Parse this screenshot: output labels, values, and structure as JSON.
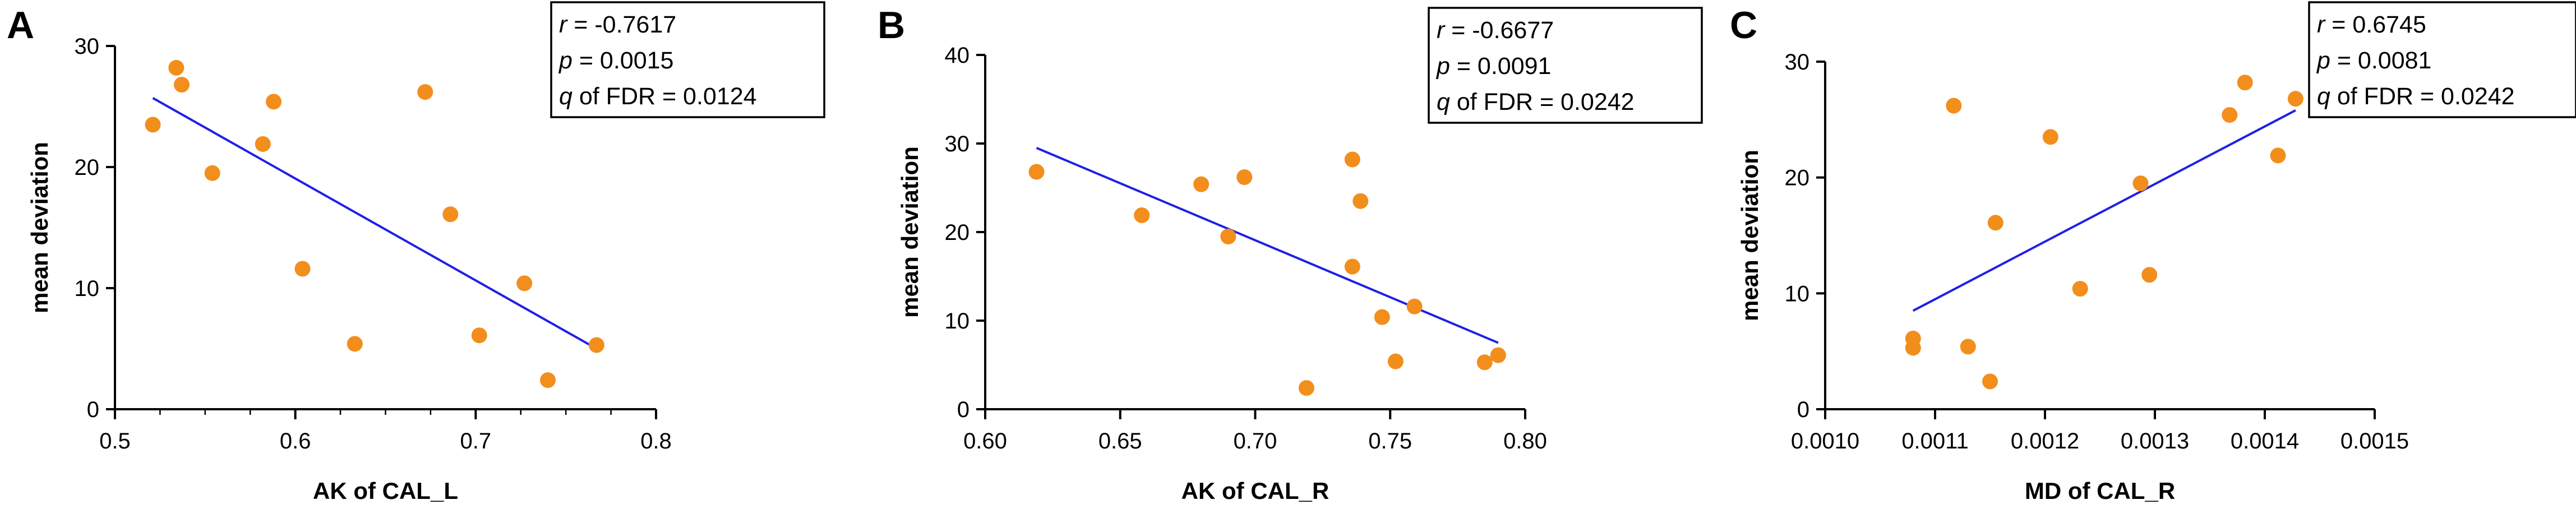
{
  "chart_data": [
    {
      "type": "scatter",
      "panel": "A",
      "xlabel": "AK of CAL_L",
      "ylabel": "mean deviation",
      "xlim": [
        0.5,
        0.8
      ],
      "ylim": [
        0,
        30
      ],
      "xticks": [
        0.5,
        0.6,
        0.7,
        0.8
      ],
      "xtick_labels": [
        "0.5",
        "0.6",
        "0.7",
        "0.8"
      ],
      "yticks": [
        0,
        10,
        20,
        30
      ],
      "ytick_labels": [
        "0",
        "10",
        "20",
        "30"
      ],
      "minor_xticks": [
        0.525,
        0.55,
        0.575,
        0.625,
        0.65,
        0.675,
        0.725,
        0.75,
        0.775
      ],
      "points": [
        [
          0.521,
          23.5
        ],
        [
          0.534,
          28.2
        ],
        [
          0.537,
          26.8
        ],
        [
          0.554,
          19.5
        ],
        [
          0.582,
          21.9
        ],
        [
          0.588,
          25.4
        ],
        [
          0.604,
          11.6
        ],
        [
          0.633,
          5.4
        ],
        [
          0.672,
          26.2
        ],
        [
          0.686,
          16.1
        ],
        [
          0.702,
          6.1
        ],
        [
          0.727,
          10.4
        ],
        [
          0.74,
          2.4
        ],
        [
          0.767,
          5.3
        ]
      ],
      "fit_line": [
        [
          0.521,
          25.7
        ],
        [
          0.767,
          5.0
        ]
      ],
      "stats": {
        "r_sym": "r",
        "r_val": " = -0.7617",
        "p_sym": "p",
        "p_val": " = 0.0015",
        "q_sym": "q",
        "q_val": " of FDR = 0.0124"
      }
    },
    {
      "type": "scatter",
      "panel": "B",
      "xlabel": "AK of CAL_R",
      "ylabel": "mean deviation",
      "xlim": [
        0.6,
        0.8
      ],
      "ylim": [
        0,
        40
      ],
      "xticks": [
        0.6,
        0.65,
        0.7,
        0.75,
        0.8
      ],
      "xtick_labels": [
        "0.60",
        "0.65",
        "0.70",
        "0.75",
        "0.80"
      ],
      "yticks": [
        0,
        10,
        20,
        30,
        40
      ],
      "ytick_labels": [
        "0",
        "10",
        "20",
        "30",
        "40"
      ],
      "minor_xticks": [],
      "points": [
        [
          0.619,
          26.8
        ],
        [
          0.658,
          21.9
        ],
        [
          0.68,
          25.4
        ],
        [
          0.69,
          19.5
        ],
        [
          0.696,
          26.2
        ],
        [
          0.719,
          2.4
        ],
        [
          0.736,
          28.2
        ],
        [
          0.736,
          16.1
        ],
        [
          0.739,
          23.5
        ],
        [
          0.747,
          10.4
        ],
        [
          0.752,
          5.4
        ],
        [
          0.759,
          11.6
        ],
        [
          0.785,
          5.3
        ],
        [
          0.79,
          6.1
        ]
      ],
      "fit_line": [
        [
          0.619,
          29.5
        ],
        [
          0.79,
          7.5
        ]
      ],
      "stats": {
        "r_sym": "r",
        "r_val": " = -0.6677",
        "p_sym": "p",
        "p_val": " = 0.0091",
        "q_sym": "q",
        "q_val": " of FDR = 0.0242"
      }
    },
    {
      "type": "scatter",
      "panel": "C",
      "xlabel": "MD of CAL_R",
      "ylabel": "mean deviation",
      "xlim": [
        0.001,
        0.0015
      ],
      "ylim": [
        0,
        30
      ],
      "xticks": [
        0.001,
        0.0011,
        0.0012,
        0.0013,
        0.0014,
        0.0015
      ],
      "xtick_labels": [
        "0.0010",
        "0.0011",
        "0.0012",
        "0.0013",
        "0.0014",
        "0.0015"
      ],
      "yticks": [
        0,
        10,
        20,
        30
      ],
      "ytick_labels": [
        "0",
        "10",
        "20",
        "30"
      ],
      "minor_xticks": [],
      "points": [
        [
          0.00108,
          5.3
        ],
        [
          0.00108,
          6.1
        ],
        [
          0.001117,
          26.2
        ],
        [
          0.00113,
          5.4
        ],
        [
          0.00115,
          2.4
        ],
        [
          0.001155,
          16.1
        ],
        [
          0.001205,
          23.5
        ],
        [
          0.001232,
          10.4
        ],
        [
          0.001287,
          19.5
        ],
        [
          0.001295,
          11.6
        ],
        [
          0.001368,
          25.4
        ],
        [
          0.001382,
          28.2
        ],
        [
          0.001412,
          21.9
        ],
        [
          0.001428,
          26.8
        ]
      ],
      "fit_line": [
        [
          0.00108,
          8.5
        ],
        [
          0.001428,
          25.8
        ]
      ],
      "stats": {
        "r_sym": "r",
        "r_val": " = 0.6745",
        "p_sym": "p",
        "p_val": " = 0.0081",
        "q_sym": "q",
        "q_val": " of FDR = 0.0242"
      }
    }
  ]
}
